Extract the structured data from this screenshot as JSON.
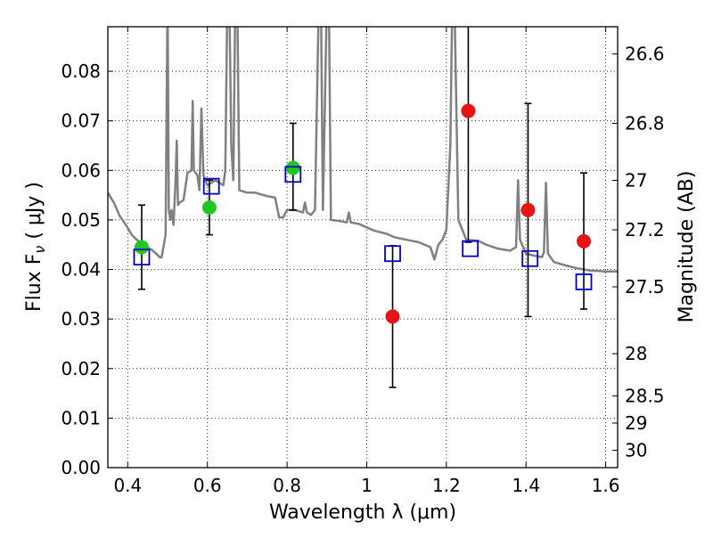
{
  "chart_data": {
    "type": "scatter",
    "xlabel": "Wavelength  λ (μm)",
    "ylabel": "Flux  F",
    "ylabel_sub": "ν",
    "ylabel_unit": "  ( μJy )",
    "y2label": "Magnitude (AB)",
    "xlim": [
      0.35,
      1.63
    ],
    "ylim": [
      0.0,
      0.089
    ],
    "grid": true,
    "x_ticks": [
      {
        "value": 0.4,
        "label": "0.4"
      },
      {
        "value": 0.6,
        "label": "0.6"
      },
      {
        "value": 0.8,
        "label": "0.8"
      },
      {
        "value": 1.0,
        "label": "1"
      },
      {
        "value": 1.2,
        "label": "1.2"
      },
      {
        "value": 1.4,
        "label": "1.4"
      },
      {
        "value": 1.6,
        "label": "1.6"
      }
    ],
    "y_ticks": [
      {
        "value": 0.0,
        "label": "0.00"
      },
      {
        "value": 0.01,
        "label": "0.01"
      },
      {
        "value": 0.02,
        "label": "0.02"
      },
      {
        "value": 0.03,
        "label": "0.03"
      },
      {
        "value": 0.04,
        "label": "0.04"
      },
      {
        "value": 0.05,
        "label": "0.05"
      },
      {
        "value": 0.06,
        "label": "0.06"
      },
      {
        "value": 0.07,
        "label": "0.07"
      },
      {
        "value": 0.08,
        "label": "0.08"
      }
    ],
    "y2_ticks": [
      {
        "label": "26.6",
        "flux": 0.0835
      },
      {
        "label": "26.8",
        "flux": 0.0695
      },
      {
        "label": "27",
        "flux": 0.058
      },
      {
        "label": "27.2",
        "flux": 0.048
      },
      {
        "label": "27.5",
        "flux": 0.0365
      },
      {
        "label": "28",
        "flux": 0.023
      },
      {
        "label": "28.5",
        "flux": 0.0145
      },
      {
        "label": "29",
        "flux": 0.009
      },
      {
        "label": "30",
        "flux": 0.0035
      }
    ],
    "colors": {
      "sed": "#808080",
      "green": "#1ec81e",
      "red": "#e61414",
      "model": "#0000cc",
      "error": "#000000"
    },
    "sed_spectrum": [
      [
        0.35,
        0.0555
      ],
      [
        0.365,
        0.0535
      ],
      [
        0.38,
        0.0508
      ],
      [
        0.39,
        0.0496
      ],
      [
        0.4,
        0.0484
      ],
      [
        0.41,
        0.047
      ],
      [
        0.42,
        0.0462
      ],
      [
        0.43,
        0.0455
      ],
      [
        0.44,
        0.0449
      ],
      [
        0.45,
        0.0444
      ],
      [
        0.46,
        0.044
      ],
      [
        0.47,
        0.0433
      ],
      [
        0.48,
        0.0425
      ],
      [
        0.485,
        0.0424
      ],
      [
        0.495,
        0.047
      ],
      [
        0.5,
        0.095
      ],
      [
        0.503,
        0.052
      ],
      [
        0.507,
        0.05
      ],
      [
        0.51,
        0.052
      ],
      [
        0.515,
        0.049
      ],
      [
        0.52,
        0.058
      ],
      [
        0.523,
        0.066
      ],
      [
        0.526,
        0.053
      ],
      [
        0.53,
        0.0535
      ],
      [
        0.54,
        0.054
      ],
      [
        0.55,
        0.0595
      ],
      [
        0.56,
        0.06
      ],
      [
        0.563,
        0.074
      ],
      [
        0.566,
        0.06
      ],
      [
        0.575,
        0.059
      ],
      [
        0.58,
        0.056
      ],
      [
        0.585,
        0.0725
      ],
      [
        0.59,
        0.059
      ],
      [
        0.6,
        0.057
      ],
      [
        0.62,
        0.058
      ],
      [
        0.64,
        0.057
      ],
      [
        0.645,
        0.06
      ],
      [
        0.65,
        0.095
      ],
      [
        0.655,
        0.095
      ],
      [
        0.66,
        0.065
      ],
      [
        0.665,
        0.058
      ],
      [
        0.67,
        0.095
      ],
      [
        0.675,
        0.095
      ],
      [
        0.68,
        0.056
      ],
      [
        0.7,
        0.0555
      ],
      [
        0.72,
        0.0555
      ],
      [
        0.75,
        0.0548
      ],
      [
        0.77,
        0.0545
      ],
      [
        0.78,
        0.0505
      ],
      [
        0.79,
        0.0505
      ],
      [
        0.8,
        0.052
      ],
      [
        0.82,
        0.052
      ],
      [
        0.84,
        0.0515
      ],
      [
        0.845,
        0.0535
      ],
      [
        0.85,
        0.0515
      ],
      [
        0.86,
        0.051
      ],
      [
        0.87,
        0.052
      ],
      [
        0.88,
        0.095
      ],
      [
        0.885,
        0.095
      ],
      [
        0.89,
        0.052
      ],
      [
        0.9,
        0.095
      ],
      [
        0.905,
        0.095
      ],
      [
        0.91,
        0.05
      ],
      [
        0.93,
        0.0498
      ],
      [
        0.95,
        0.0495
      ],
      [
        0.955,
        0.0515
      ],
      [
        0.96,
        0.0495
      ],
      [
        0.98,
        0.0492
      ],
      [
        1.0,
        0.0485
      ],
      [
        1.02,
        0.0478
      ],
      [
        1.05,
        0.0472
      ],
      [
        1.07,
        0.0465
      ],
      [
        1.1,
        0.046
      ],
      [
        1.13,
        0.0455
      ],
      [
        1.16,
        0.0445
      ],
      [
        1.17,
        0.042
      ],
      [
        1.18,
        0.045
      ],
      [
        1.19,
        0.046
      ],
      [
        1.2,
        0.048
      ],
      [
        1.21,
        0.065
      ],
      [
        1.215,
        0.095
      ],
      [
        1.22,
        0.095
      ],
      [
        1.23,
        0.05
      ],
      [
        1.25,
        0.046
      ],
      [
        1.28,
        0.0458
      ],
      [
        1.3,
        0.045
      ],
      [
        1.33,
        0.0442
      ],
      [
        1.36,
        0.0438
      ],
      [
        1.375,
        0.0445
      ],
      [
        1.38,
        0.058
      ],
      [
        1.385,
        0.046
      ],
      [
        1.4,
        0.0432
      ],
      [
        1.42,
        0.0428
      ],
      [
        1.44,
        0.0425
      ],
      [
        1.445,
        0.0435
      ],
      [
        1.45,
        0.0575
      ],
      [
        1.455,
        0.0432
      ],
      [
        1.47,
        0.0415
      ],
      [
        1.5,
        0.0408
      ],
      [
        1.53,
        0.0402
      ],
      [
        1.56,
        0.0398
      ],
      [
        1.6,
        0.0396
      ],
      [
        1.63,
        0.0396
      ]
    ],
    "series": [
      {
        "color": "green",
        "points": [
          {
            "x": 0.435,
            "y": 0.0445,
            "err_lo": 0.036,
            "err_hi": 0.053
          },
          {
            "x": 0.605,
            "y": 0.0525,
            "err_lo": 0.047,
            "err_hi": 0.058
          },
          {
            "x": 0.815,
            "y": 0.0605,
            "err_lo": 0.052,
            "err_hi": 0.0695
          }
        ]
      },
      {
        "color": "red",
        "points": [
          {
            "x": 1.065,
            "y": 0.0305,
            "err_lo": 0.0162,
            "err_hi": 0.0448
          },
          {
            "x": 1.255,
            "y": 0.072,
            "err_lo": 0.0455,
            "err_hi": 0.0985
          },
          {
            "x": 1.405,
            "y": 0.052,
            "err_lo": 0.0305,
            "err_hi": 0.0735
          },
          {
            "x": 1.545,
            "y": 0.0457,
            "err_lo": 0.032,
            "err_hi": 0.0595
          }
        ]
      },
      {
        "color": "model",
        "marker": "square",
        "points": [
          {
            "x": 0.435,
            "y": 0.0425
          },
          {
            "x": 0.61,
            "y": 0.0568
          },
          {
            "x": 0.815,
            "y": 0.0592
          },
          {
            "x": 1.065,
            "y": 0.0432
          },
          {
            "x": 1.26,
            "y": 0.0442
          },
          {
            "x": 1.41,
            "y": 0.0422
          },
          {
            "x": 1.545,
            "y": 0.0375
          }
        ]
      }
    ]
  }
}
